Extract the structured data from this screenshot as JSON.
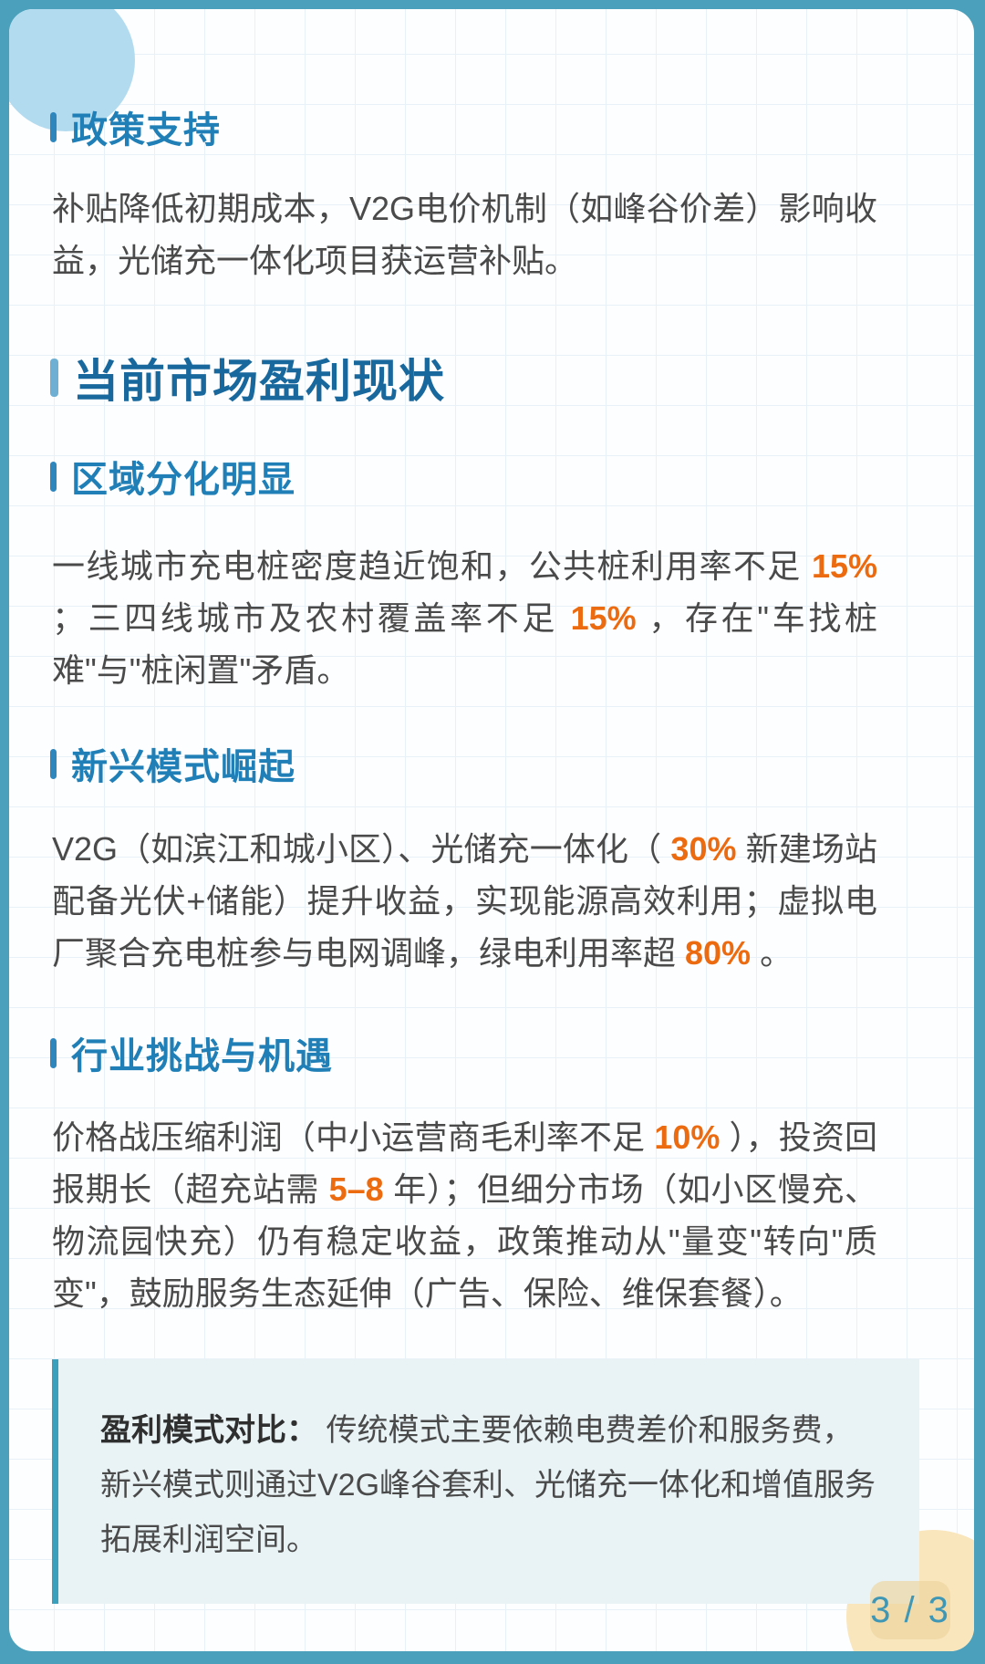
{
  "page": {
    "indicator": "3 / 3"
  },
  "headings": {
    "policy": "政策支持",
    "market": "当前市场盈利现状",
    "region": "区域分化明显",
    "emerging": "新兴模式崛起",
    "challenge": "行业挑战与机遇"
  },
  "paragraphs": {
    "policy": [
      {
        "text": "补贴降低初期成本，V2G电价机制（如峰谷价差）影响收益，光储充一体化项目获运营补贴。"
      }
    ],
    "region": [
      {
        "text": "一线城市充电桩密度趋近饱和，公共桩利用率不足 "
      },
      {
        "text": "15%",
        "hl": true
      },
      {
        "text": " ；三四线城市及农村覆盖率不足 "
      },
      {
        "text": "15%",
        "hl": true
      },
      {
        "text": " ，存在\"车找桩难\"与\"桩闲置\"矛盾。"
      }
    ],
    "emerging": [
      {
        "text": "V2G（如滨江和城小区）、光储充一体化（ "
      },
      {
        "text": "30%",
        "hl": true
      },
      {
        "text": " 新建场站配备光伏+储能）提升收益，实现能源高效利用；虚拟电厂聚合充电桩参与电网调峰，绿电利用率超 "
      },
      {
        "text": "80%",
        "hl": true
      },
      {
        "text": " 。"
      }
    ],
    "challenge": [
      {
        "text": "价格战压缩利润（中小运营商毛利率不足 "
      },
      {
        "text": "10%",
        "hl": true
      },
      {
        "text": " ），投资回报期长（超充站需 "
      },
      {
        "text": "5–8",
        "hl": true
      },
      {
        "text": " 年）；但细分市场（如小区慢充、物流园快充）仍有稳定收益，政策推动从\"量变\"转向\"质变\"，鼓励服务生态延伸（广告、保险、维保套餐）。"
      }
    ]
  },
  "callout": {
    "label": "盈利模式对比：",
    "segments": [
      {
        "text": " 传统模式主要依赖电费差价和服务费，新兴模式则通过V2G峰谷套利、光储充一体化和增值服务拓展利润空间。"
      }
    ]
  },
  "colors": {
    "frame_teal": "#4BA1BB",
    "heading_blue": "#1F7FB6",
    "heading_dark_blue": "#19689D",
    "h2_bar_blue": "#6FAFD3",
    "body_gray": "#4A4A4A",
    "accent_orange": "#EC6B10",
    "callout_bg": "#E9F3F5",
    "callout_border": "#3AA0BC",
    "decor_circle_blue": "#B3DBEF",
    "decor_circle_cream": "#F9E6BD",
    "indicator_teal": "#3F97B6"
  }
}
